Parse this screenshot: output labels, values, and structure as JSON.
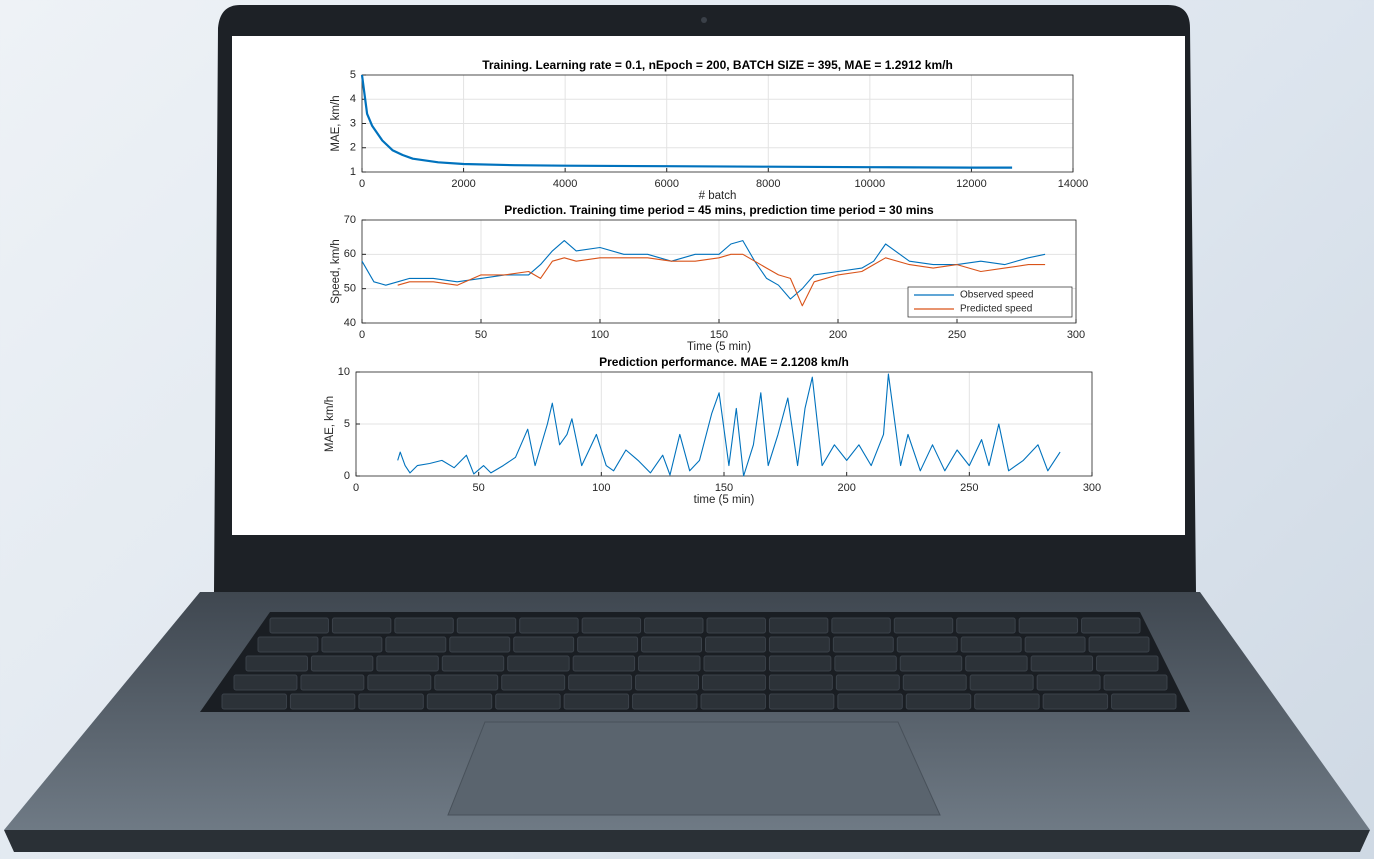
{
  "chart_data": [
    {
      "type": "line",
      "title": "Training. Learning rate = 0.1, nEpoch = 200, BATCH SIZE = 395, MAE = 1.2912 km/h",
      "xlabel": "# batch",
      "ylabel": "MAE, km/h",
      "x": [
        0,
        100,
        200,
        400,
        600,
        800,
        1000,
        1500,
        2000,
        3000,
        4000,
        6000,
        8000,
        10000,
        12000,
        12800
      ],
      "values": [
        5,
        3.4,
        2.9,
        2.3,
        1.9,
        1.7,
        1.55,
        1.4,
        1.33,
        1.28,
        1.26,
        1.24,
        1.22,
        1.2,
        1.18,
        1.18
      ],
      "color": "#0072bd",
      "xlim": [
        0,
        14000
      ],
      "xticks": [
        0,
        2000,
        4000,
        6000,
        8000,
        10000,
        12000,
        14000
      ],
      "ylim": [
        1,
        5
      ],
      "yticks": [
        1,
        2,
        3,
        4,
        5
      ],
      "grid": true
    },
    {
      "type": "line",
      "title": "Prediction. Training time period = 45 mins, prediction time period = 30 mins",
      "xlabel": "Time (5 min)",
      "ylabel": "Speed, km/h",
      "x": [
        0,
        5,
        10,
        15,
        20,
        30,
        40,
        50,
        60,
        70,
        75,
        80,
        85,
        90,
        100,
        110,
        120,
        130,
        140,
        150,
        155,
        160,
        165,
        170,
        175,
        180,
        185,
        190,
        200,
        210,
        215,
        220,
        230,
        240,
        250,
        260,
        270,
        280,
        287
      ],
      "series": [
        {
          "name": "Observed speed",
          "color": "#0072bd",
          "values": [
            58,
            52,
            51,
            52,
            53,
            53,
            52,
            53,
            54,
            54,
            57,
            61,
            64,
            61,
            62,
            60,
            60,
            58,
            60,
            60,
            63,
            64,
            58,
            53,
            51,
            47,
            50,
            54,
            55,
            56,
            58,
            63,
            58,
            57,
            57,
            58,
            57,
            59,
            60
          ]
        },
        {
          "name": "Predicted speed",
          "color": "#d95319",
          "values": [
            null,
            null,
            null,
            51,
            52,
            52,
            51,
            54,
            54,
            55,
            53,
            58,
            59,
            58,
            59,
            59,
            59,
            58,
            58,
            59,
            60,
            60,
            58,
            56,
            54,
            53,
            45,
            52,
            54,
            55,
            57,
            59,
            57,
            56,
            57,
            55,
            56,
            57,
            57
          ]
        }
      ],
      "legend": "lower right",
      "xlim": [
        0,
        300
      ],
      "xticks": [
        0,
        50,
        100,
        150,
        200,
        250,
        300
      ],
      "ylim": [
        40,
        70
      ],
      "yticks": [
        40,
        50,
        60,
        70
      ],
      "grid": true
    },
    {
      "type": "line",
      "title": "Prediction performance. MAE = 2.1208 km/h",
      "xlabel": "time (5 min)",
      "ylabel": "MAE, km/h",
      "x": [
        17,
        18,
        20,
        22,
        25,
        30,
        35,
        40,
        45,
        48,
        52,
        55,
        60,
        65,
        70,
        73,
        78,
        80,
        83,
        86,
        88,
        92,
        95,
        98,
        102,
        105,
        110,
        115,
        120,
        125,
        128,
        132,
        136,
        140,
        145,
        148,
        152,
        155,
        158,
        162,
        165,
        168,
        172,
        176,
        180,
        183,
        186,
        190,
        195,
        200,
        205,
        210,
        215,
        217,
        222,
        225,
        230,
        235,
        240,
        245,
        250,
        255,
        258,
        262,
        266,
        272,
        278,
        282,
        287
      ],
      "values": [
        1.5,
        2.3,
        1,
        0.3,
        1,
        1.2,
        1.5,
        0.8,
        2,
        0.2,
        1,
        0.3,
        1,
        1.8,
        4.5,
        1,
        5,
        7,
        3,
        4,
        5.5,
        1,
        2.5,
        4,
        1,
        0.5,
        2.5,
        1.5,
        0.3,
        2,
        0.1,
        4,
        0.5,
        1.5,
        6,
        8,
        1,
        6.5,
        0,
        3,
        8,
        1,
        4,
        7.5,
        1,
        6.5,
        9.5,
        1,
        3,
        1.5,
        3,
        1,
        4,
        9.8,
        1,
        4,
        0.5,
        3,
        0.5,
        2.5,
        1,
        3.5,
        1,
        5,
        0.5,
        1.5,
        3,
        0.5,
        2.3
      ],
      "color": "#0072bd",
      "xlim": [
        0,
        300
      ],
      "xticks": [
        0,
        50,
        100,
        150,
        200,
        250,
        300
      ],
      "ylim": [
        0,
        10
      ],
      "yticks": [
        0,
        5,
        10
      ],
      "grid": true
    }
  ]
}
